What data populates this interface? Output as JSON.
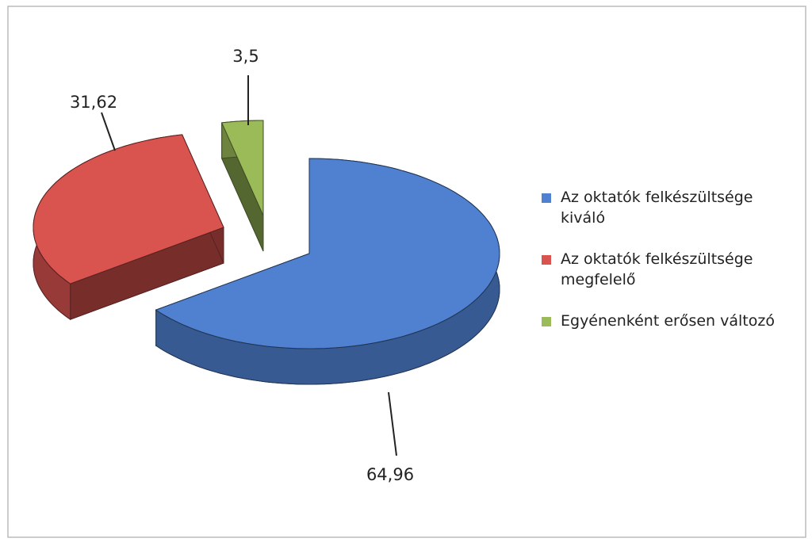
{
  "chart_data": {
    "type": "pie",
    "three_d": true,
    "categories": [
      "Az oktatók felkészültsége kiváló",
      "Az oktatók felkészültsége megfelelő",
      "Egyénenként erősen változó"
    ],
    "values": [
      64.96,
      31.62,
      3.5
    ],
    "value_labels": [
      "64,96",
      "31,62",
      "3,5"
    ],
    "colors": [
      "#4f81d0",
      "#d9534f",
      "#9bbb59"
    ],
    "legend": "right"
  }
}
